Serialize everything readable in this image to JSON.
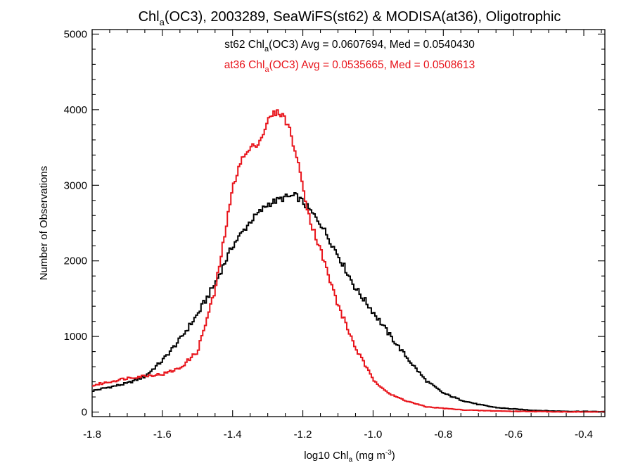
{
  "chart_data": {
    "type": "line",
    "title": {
      "pre": "Chl",
      "sub": "a",
      "post": "(OC3), 2003289, SeaWiFS(st62) & MODISA(at36), Oligotrophic"
    },
    "xlabel": {
      "pre": "log10 Chl",
      "sub": "a",
      "mid": " (mg m",
      "sup": "-3",
      "post": ")"
    },
    "ylabel": "Number of Observations",
    "xlim": [
      -1.8,
      -0.34
    ],
    "ylim": [
      -60,
      5060
    ],
    "xticks": [
      -1.8,
      -1.6,
      -1.4,
      -1.2,
      -1.0,
      -0.8,
      -0.6,
      -0.4
    ],
    "xtick_labels": [
      "-1.8",
      "-1.6",
      "-1.4",
      "-1.2",
      "-1.0",
      "-0.8",
      "-0.6",
      "-0.4"
    ],
    "yticks": [
      0,
      1000,
      2000,
      3000,
      4000,
      5000
    ],
    "ytick_labels": [
      "0",
      "1000",
      "2000",
      "3000",
      "4000",
      "5000"
    ],
    "grid": false,
    "legend_position": "top-center",
    "series": [
      {
        "name": "st62",
        "color": "#000000",
        "legend": {
          "pre": "st62 Chl",
          "sub": "a",
          "post": "(OC3) Avg = 0.0607694, Med = 0.0540430"
        },
        "x": [
          -1.8,
          -1.75,
          -1.7,
          -1.65,
          -1.6,
          -1.55,
          -1.5,
          -1.45,
          -1.4,
          -1.35,
          -1.3,
          -1.25,
          -1.22,
          -1.2,
          -1.15,
          -1.1,
          -1.05,
          -1.0,
          -0.95,
          -0.9,
          -0.85,
          -0.8,
          -0.75,
          -0.7,
          -0.65,
          -0.6,
          -0.55,
          -0.5,
          -0.45,
          -0.4,
          -0.35
        ],
        "values": [
          280,
          330,
          380,
          470,
          680,
          960,
          1290,
          1700,
          2200,
          2520,
          2750,
          2840,
          2860,
          2780,
          2500,
          2080,
          1640,
          1330,
          1000,
          700,
          420,
          250,
          160,
          100,
          60,
          40,
          25,
          15,
          10,
          8,
          5
        ]
      },
      {
        "name": "at36",
        "color": "#e8141b",
        "legend": {
          "pre": "at36 Chl",
          "sub": "a",
          "post": "(OC3) Avg = 0.0535665, Med = 0.0508613"
        },
        "x": [
          -1.8,
          -1.75,
          -1.7,
          -1.65,
          -1.6,
          -1.55,
          -1.5,
          -1.45,
          -1.4,
          -1.38,
          -1.35,
          -1.32,
          -1.3,
          -1.28,
          -1.26,
          -1.24,
          -1.22,
          -1.2,
          -1.18,
          -1.15,
          -1.12,
          -1.1,
          -1.05,
          -1.0,
          -0.95,
          -0.9,
          -0.85,
          -0.8,
          -0.75,
          -0.7,
          -0.65,
          -0.6,
          -0.55,
          -0.5,
          -0.45,
          -0.4,
          -0.35
        ],
        "values": [
          350,
          400,
          450,
          480,
          500,
          580,
          800,
          1600,
          2950,
          3300,
          3480,
          3600,
          3850,
          3960,
          3950,
          3780,
          3420,
          3000,
          2550,
          2150,
          1700,
          1420,
          850,
          430,
          230,
          140,
          70,
          50,
          30,
          20,
          15,
          10,
          8,
          5,
          3,
          2,
          1
        ]
      }
    ]
  }
}
